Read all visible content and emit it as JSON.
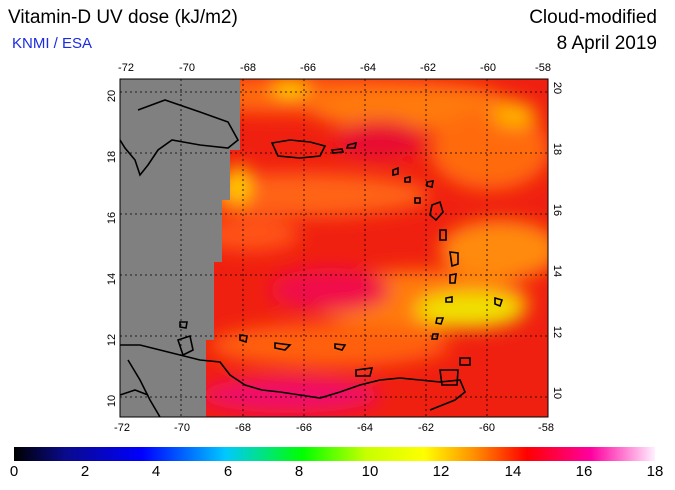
{
  "header": {
    "title": "Vitamin-D UV dose (kJ/m2)",
    "credit": "KNMI / ESA",
    "product": "Cloud-modified",
    "date": "8 April 2019"
  },
  "map": {
    "lon_range": [
      -72,
      -58
    ],
    "lat_range": [
      9.5,
      20.5
    ],
    "lon_ticks": [
      "-72",
      "-70",
      "-68",
      "-66",
      "-64",
      "-62",
      "-60",
      "-58"
    ],
    "lat_ticks": [
      "10",
      "12",
      "14",
      "16",
      "18",
      "20"
    ],
    "no_data_color": "#808080",
    "gridlines": "dotted"
  },
  "colorbar": {
    "min": 0,
    "max": 18,
    "labels": [
      "0",
      "2",
      "4",
      "6",
      "8",
      "10",
      "12",
      "14",
      "16",
      "18"
    ],
    "colors": [
      "#000000",
      "#0a0a8c",
      "#0000ff",
      "#00c8ff",
      "#00ff00",
      "#c8ff00",
      "#ffff00",
      "#ff8c00",
      "#ff0000",
      "#ff00a0",
      "#ffffff"
    ]
  }
}
